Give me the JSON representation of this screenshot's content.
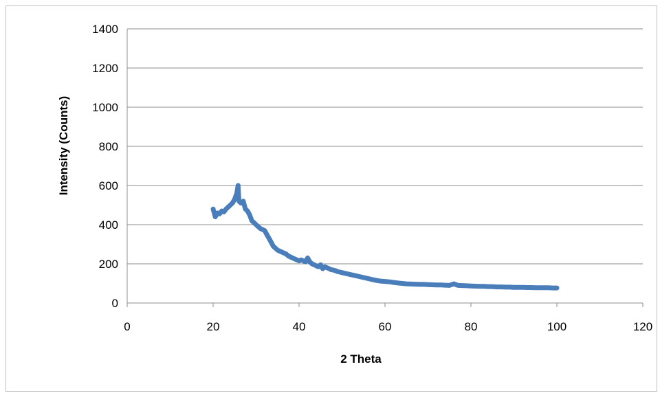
{
  "chart_data": {
    "type": "line",
    "title": "",
    "xlabel": "2 Theta",
    "ylabel": "Intensity (Counts)",
    "xlim": [
      0,
      120
    ],
    "ylim": [
      0,
      1400
    ],
    "x_ticks": [
      0,
      20,
      40,
      60,
      80,
      100,
      120
    ],
    "y_ticks": [
      0,
      200,
      400,
      600,
      800,
      1000,
      1200,
      1400
    ],
    "grid": "horizontal",
    "legend": "none",
    "colors": {
      "series": "#4a7ebb",
      "grid": "#8c8c8c",
      "axis": "#8c8c8c"
    },
    "series": [
      {
        "color": "#4a7ebb",
        "x": [
          20,
          20.5,
          21,
          21.5,
          22,
          22.5,
          23,
          23.5,
          24,
          24.5,
          25,
          25.5,
          25.8,
          26,
          26.5,
          27,
          27.5,
          28,
          28.5,
          29,
          29.5,
          30,
          30.5,
          31,
          31.5,
          32,
          32.5,
          33,
          33.5,
          34,
          34.5,
          35,
          35.5,
          36,
          36.5,
          37,
          37.5,
          38,
          38.5,
          39,
          39.5,
          40,
          40.5,
          41,
          41.5,
          42,
          42.5,
          43,
          43.5,
          44,
          44.5,
          45,
          45.5,
          46,
          46.5,
          47,
          47.5,
          48,
          48.5,
          49,
          49.5,
          50,
          51,
          52,
          53,
          54,
          55,
          56,
          57,
          58,
          59,
          60,
          61,
          62,
          63,
          64,
          65,
          66,
          67,
          68,
          69,
          70,
          71,
          72,
          73,
          74,
          75,
          76,
          77,
          78,
          79,
          80,
          81,
          82,
          83,
          84,
          85,
          86,
          87,
          88,
          89,
          90,
          91,
          92,
          93,
          94,
          95,
          96,
          97,
          98,
          99,
          100
        ],
        "y": [
          480,
          440,
          460,
          455,
          470,
          465,
          480,
          490,
          500,
          510,
          530,
          560,
          600,
          520,
          510,
          520,
          480,
          470,
          450,
          420,
          410,
          400,
          390,
          380,
          375,
          370,
          350,
          330,
          310,
          290,
          280,
          270,
          265,
          260,
          255,
          250,
          240,
          235,
          230,
          225,
          220,
          215,
          220,
          215,
          210,
          230,
          210,
          200,
          195,
          190,
          185,
          195,
          175,
          185,
          180,
          175,
          170,
          168,
          165,
          160,
          158,
          155,
          150,
          145,
          140,
          135,
          130,
          125,
          120,
          115,
          112,
          110,
          108,
          105,
          102,
          100,
          98,
          97,
          96,
          95,
          95,
          94,
          93,
          92,
          92,
          91,
          90,
          98,
          90,
          89,
          88,
          87,
          86,
          85,
          85,
          84,
          83,
          82,
          82,
          81,
          81,
          80,
          80,
          80,
          79,
          79,
          78,
          78,
          78,
          78,
          77,
          77
        ]
      }
    ]
  }
}
